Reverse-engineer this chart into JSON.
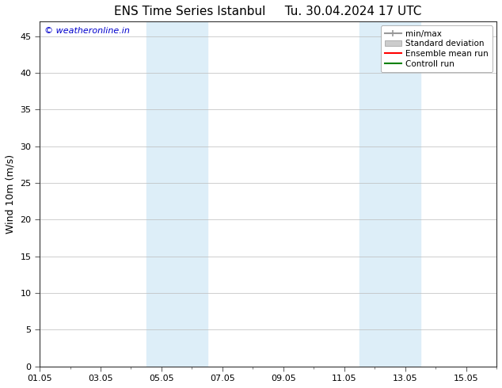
{
  "title_left": "ENS Time Series Istanbul",
  "title_right": "Tu. 30.04.2024 17 UTC",
  "ylabel": "Wind 10m (m/s)",
  "ylim": [
    0,
    47
  ],
  "yticks": [
    0,
    5,
    10,
    15,
    20,
    25,
    30,
    35,
    40,
    45
  ],
  "xtick_labels": [
    "01.05",
    "03.05",
    "05.05",
    "07.05",
    "09.05",
    "11.05",
    "13.05",
    "15.05"
  ],
  "xtick_positions": [
    0,
    2,
    4,
    6,
    8,
    10,
    12,
    14
  ],
  "xmin": 0,
  "xmax": 15,
  "shaded_bands": [
    {
      "x_start": 3.0,
      "x_end": 4.0,
      "color": "#ddeef8"
    },
    {
      "x_start": 4.0,
      "x_end": 5.5,
      "color": "#ddeef8"
    },
    {
      "x_start": 10.5,
      "x_end": 11.5,
      "color": "#ddeef8"
    },
    {
      "x_start": 11.5,
      "x_end": 13.0,
      "color": "#ddeef8"
    }
  ],
  "watermark": "© weatheronline.in",
  "watermark_color": "#0000cc",
  "legend_items": [
    {
      "label": "min/max",
      "color": "#999999",
      "type": "minmax"
    },
    {
      "label": "Standard deviation",
      "color": "#cccccc",
      "type": "stddev"
    },
    {
      "label": "Ensemble mean run",
      "color": "#ff0000",
      "type": "line"
    },
    {
      "label": "Controll run",
      "color": "#008000",
      "type": "line"
    }
  ],
  "background_color": "#ffffff",
  "plot_background": "#ffffff",
  "grid_color": "#bbbbbb",
  "title_fontsize": 11,
  "axis_fontsize": 9,
  "tick_fontsize": 8,
  "legend_fontsize": 7.5
}
